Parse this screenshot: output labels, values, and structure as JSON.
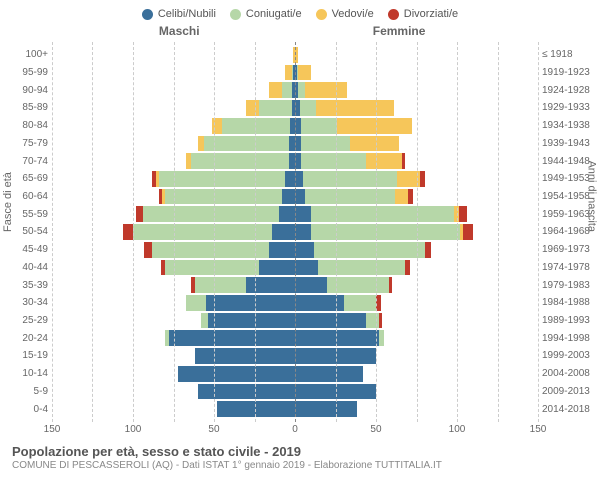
{
  "legend": [
    {
      "label": "Celibi/Nubili",
      "color": "#3a6f9a"
    },
    {
      "label": "Coniugati/e",
      "color": "#b6d7a8"
    },
    {
      "label": "Vedovi/e",
      "color": "#f6c65a"
    },
    {
      "label": "Divorziati/e",
      "color": "#c0392b"
    }
  ],
  "headers": {
    "male": "Maschi",
    "female": "Femmine"
  },
  "axis": {
    "left_title": "Fasce di età",
    "right_title": "Anni di nascita",
    "xmax": 150,
    "xticks": [
      150,
      100,
      50,
      0,
      50,
      100,
      150
    ],
    "xtick_positions": [
      -150,
      -100,
      -50,
      0,
      50,
      100,
      150
    ],
    "grid_positions": [
      -150,
      -125,
      -100,
      -75,
      -50,
      -25,
      25,
      50,
      75,
      100,
      125,
      150
    ]
  },
  "colors": {
    "celibi": "#3a6f9a",
    "coniugati": "#b6d7a8",
    "vedovi": "#f6c65a",
    "divorziati": "#c0392b",
    "grid": "#cccccc",
    "center": "#888888",
    "bg": "#ffffff"
  },
  "age_groups": [
    {
      "age": "0-4",
      "birth": "2014-2018",
      "m": [
        48,
        0,
        0,
        0
      ],
      "f": [
        38,
        0,
        0,
        0
      ]
    },
    {
      "age": "5-9",
      "birth": "2009-2013",
      "m": [
        60,
        0,
        0,
        0
      ],
      "f": [
        50,
        0,
        0,
        0
      ]
    },
    {
      "age": "10-14",
      "birth": "2004-2008",
      "m": [
        72,
        0,
        0,
        0
      ],
      "f": [
        42,
        0,
        0,
        0
      ]
    },
    {
      "age": "15-19",
      "birth": "1999-2003",
      "m": [
        62,
        0,
        0,
        0
      ],
      "f": [
        50,
        0,
        0,
        0
      ]
    },
    {
      "age": "20-24",
      "birth": "1994-1998",
      "m": [
        78,
        2,
        0,
        0
      ],
      "f": [
        52,
        3,
        0,
        0
      ]
    },
    {
      "age": "25-29",
      "birth": "1989-1993",
      "m": [
        54,
        4,
        0,
        0
      ],
      "f": [
        44,
        8,
        0,
        2
      ]
    },
    {
      "age": "30-34",
      "birth": "1984-1988",
      "m": [
        55,
        12,
        0,
        0
      ],
      "f": [
        30,
        20,
        0,
        3
      ]
    },
    {
      "age": "35-39",
      "birth": "1979-1983",
      "m": [
        30,
        32,
        0,
        2
      ],
      "f": [
        20,
        38,
        0,
        2
      ]
    },
    {
      "age": "40-44",
      "birth": "1974-1978",
      "m": [
        22,
        58,
        0,
        3
      ],
      "f": [
        14,
        54,
        0,
        3
      ]
    },
    {
      "age": "45-49",
      "birth": "1969-1973",
      "m": [
        16,
        72,
        0,
        5
      ],
      "f": [
        12,
        68,
        0,
        4
      ]
    },
    {
      "age": "50-54",
      "birth": "1964-1968",
      "m": [
        14,
        86,
        0,
        6
      ],
      "f": [
        10,
        92,
        2,
        6
      ]
    },
    {
      "age": "55-59",
      "birth": "1959-1963",
      "m": [
        10,
        84,
        0,
        4
      ],
      "f": [
        10,
        88,
        3,
        5
      ]
    },
    {
      "age": "60-64",
      "birth": "1954-1958",
      "m": [
        8,
        72,
        2,
        2
      ],
      "f": [
        6,
        56,
        8,
        3
      ]
    },
    {
      "age": "65-69",
      "birth": "1949-1953",
      "m": [
        6,
        78,
        2,
        2
      ],
      "f": [
        5,
        58,
        14,
        3
      ]
    },
    {
      "age": "70-74",
      "birth": "1944-1948",
      "m": [
        4,
        60,
        3,
        0
      ],
      "f": [
        4,
        40,
        22,
        2
      ]
    },
    {
      "age": "75-79",
      "birth": "1939-1943",
      "m": [
        4,
        52,
        4,
        0
      ],
      "f": [
        4,
        30,
        30,
        0
      ]
    },
    {
      "age": "80-84",
      "birth": "1934-1938",
      "m": [
        3,
        42,
        6,
        0
      ],
      "f": [
        4,
        22,
        46,
        0
      ]
    },
    {
      "age": "85-89",
      "birth": "1929-1933",
      "m": [
        2,
        20,
        8,
        0
      ],
      "f": [
        3,
        10,
        48,
        0
      ]
    },
    {
      "age": "90-94",
      "birth": "1924-1928",
      "m": [
        2,
        6,
        8,
        0
      ],
      "f": [
        2,
        4,
        26,
        0
      ]
    },
    {
      "age": "95-99",
      "birth": "1919-1923",
      "m": [
        1,
        1,
        4,
        0
      ],
      "f": [
        1,
        1,
        8,
        0
      ]
    },
    {
      "age": "100+",
      "birth": "≤ 1918",
      "m": [
        0,
        0,
        1,
        0
      ],
      "f": [
        0,
        0,
        2,
        0
      ]
    }
  ],
  "footer": {
    "title": "Popolazione per età, sesso e stato civile - 2019",
    "subtitle": "COMUNE DI PESCASSEROLI (AQ) - Dati ISTAT 1° gennaio 2019 - Elaborazione TUTTITALIA.IT"
  }
}
